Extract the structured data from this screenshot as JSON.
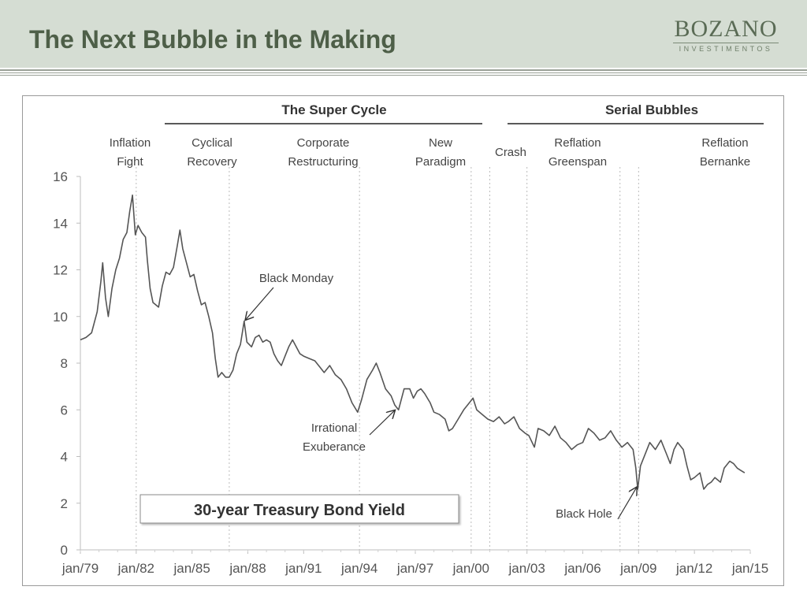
{
  "slide": {
    "title": "The Next Bubble in the Making",
    "logo": {
      "name": "BOZANO",
      "subtitle": "INVESTIMENTOS"
    },
    "colors": {
      "header_bg": "#d5ddd3",
      "title": "#4e5f48",
      "series": "#555555"
    }
  },
  "chart_data": {
    "type": "line",
    "title": "30-year Treasury Bond Yield",
    "xlabel": "",
    "ylabel": "",
    "xlim": [
      1979.0,
      2015.0
    ],
    "ylim": [
      0,
      16
    ],
    "yticks": [
      0,
      2,
      4,
      6,
      8,
      10,
      12,
      14,
      16
    ],
    "xticks": [
      {
        "label": "jan/79",
        "x": 1979.0
      },
      {
        "label": "jan/82",
        "x": 1982.0
      },
      {
        "label": "jan/85",
        "x": 1985.0
      },
      {
        "label": "jan/88",
        "x": 1988.0
      },
      {
        "label": "jan/91",
        "x": 1991.0
      },
      {
        "label": "jan/94",
        "x": 1994.0
      },
      {
        "label": "jan/97",
        "x": 1997.0
      },
      {
        "label": "jan/00",
        "x": 2000.0
      },
      {
        "label": "jan/03",
        "x": 2003.0
      },
      {
        "label": "jan/06",
        "x": 2006.0
      },
      {
        "label": "jan/09",
        "x": 2009.0
      },
      {
        "label": "jan/12",
        "x": 2012.0
      },
      {
        "label": "jan/15",
        "x": 2015.0
      }
    ],
    "grid": false,
    "series": [
      {
        "values": [
          [
            1979.0,
            9.0
          ],
          [
            1979.3,
            9.1
          ],
          [
            1979.6,
            9.3
          ],
          [
            1979.9,
            10.2
          ],
          [
            1980.1,
            11.5
          ],
          [
            1980.2,
            12.3
          ],
          [
            1980.35,
            10.8
          ],
          [
            1980.5,
            10.0
          ],
          [
            1980.7,
            11.2
          ],
          [
            1980.9,
            12.0
          ],
          [
            1981.1,
            12.5
          ],
          [
            1981.3,
            13.3
          ],
          [
            1981.5,
            13.6
          ],
          [
            1981.65,
            14.5
          ],
          [
            1981.8,
            15.2
          ],
          [
            1981.95,
            13.5
          ],
          [
            1982.1,
            13.9
          ],
          [
            1982.3,
            13.6
          ],
          [
            1982.5,
            13.4
          ],
          [
            1982.6,
            12.4
          ],
          [
            1982.75,
            11.2
          ],
          [
            1982.9,
            10.6
          ],
          [
            1983.05,
            10.5
          ],
          [
            1983.2,
            10.4
          ],
          [
            1983.4,
            11.3
          ],
          [
            1983.6,
            11.9
          ],
          [
            1983.8,
            11.8
          ],
          [
            1984.0,
            12.1
          ],
          [
            1984.2,
            13.0
          ],
          [
            1984.35,
            13.7
          ],
          [
            1984.5,
            12.9
          ],
          [
            1984.7,
            12.3
          ],
          [
            1984.9,
            11.7
          ],
          [
            1985.1,
            11.8
          ],
          [
            1985.3,
            11.1
          ],
          [
            1985.5,
            10.5
          ],
          [
            1985.7,
            10.6
          ],
          [
            1985.9,
            10.0
          ],
          [
            1986.1,
            9.3
          ],
          [
            1986.25,
            8.2
          ],
          [
            1986.4,
            7.4
          ],
          [
            1986.6,
            7.6
          ],
          [
            1986.8,
            7.4
          ],
          [
            1987.0,
            7.4
          ],
          [
            1987.2,
            7.7
          ],
          [
            1987.4,
            8.4
          ],
          [
            1987.6,
            8.8
          ],
          [
            1987.8,
            9.8
          ],
          [
            1987.95,
            8.9
          ],
          [
            1988.2,
            8.7
          ],
          [
            1988.4,
            9.1
          ],
          [
            1988.6,
            9.2
          ],
          [
            1988.8,
            8.9
          ],
          [
            1989.0,
            9.0
          ],
          [
            1989.2,
            8.9
          ],
          [
            1989.4,
            8.4
          ],
          [
            1989.6,
            8.1
          ],
          [
            1989.8,
            7.9
          ],
          [
            1990.0,
            8.3
          ],
          [
            1990.2,
            8.7
          ],
          [
            1990.4,
            9.0
          ],
          [
            1990.6,
            8.7
          ],
          [
            1990.8,
            8.4
          ],
          [
            1991.0,
            8.3
          ],
          [
            1991.3,
            8.2
          ],
          [
            1991.6,
            8.1
          ],
          [
            1991.9,
            7.8
          ],
          [
            1992.1,
            7.6
          ],
          [
            1992.4,
            7.9
          ],
          [
            1992.7,
            7.5
          ],
          [
            1993.0,
            7.3
          ],
          [
            1993.3,
            6.9
          ],
          [
            1993.6,
            6.3
          ],
          [
            1993.9,
            5.9
          ],
          [
            1994.1,
            6.4
          ],
          [
            1994.4,
            7.3
          ],
          [
            1994.7,
            7.7
          ],
          [
            1994.9,
            8.0
          ],
          [
            1995.1,
            7.6
          ],
          [
            1995.4,
            6.9
          ],
          [
            1995.7,
            6.6
          ],
          [
            1995.9,
            6.2
          ],
          [
            1996.1,
            6.0
          ],
          [
            1996.4,
            6.9
          ],
          [
            1996.7,
            6.9
          ],
          [
            1996.9,
            6.5
          ],
          [
            1997.1,
            6.8
          ],
          [
            1997.3,
            6.9
          ],
          [
            1997.5,
            6.7
          ],
          [
            1997.8,
            6.3
          ],
          [
            1998.0,
            5.9
          ],
          [
            1998.3,
            5.8
          ],
          [
            1998.6,
            5.6
          ],
          [
            1998.8,
            5.1
          ],
          [
            1999.0,
            5.2
          ],
          [
            1999.3,
            5.6
          ],
          [
            1999.6,
            6.0
          ],
          [
            1999.9,
            6.3
          ],
          [
            2000.1,
            6.5
          ],
          [
            2000.3,
            6.0
          ],
          [
            2000.6,
            5.8
          ],
          [
            2000.9,
            5.6
          ],
          [
            2001.2,
            5.5
          ],
          [
            2001.5,
            5.7
          ],
          [
            2001.8,
            5.4
          ],
          [
            2002.0,
            5.5
          ],
          [
            2002.3,
            5.7
          ],
          [
            2002.6,
            5.2
          ],
          [
            2002.9,
            5.0
          ],
          [
            2003.1,
            4.9
          ],
          [
            2003.4,
            4.4
          ],
          [
            2003.6,
            5.2
          ],
          [
            2003.9,
            5.1
          ],
          [
            2004.2,
            4.9
          ],
          [
            2004.5,
            5.3
          ],
          [
            2004.8,
            4.8
          ],
          [
            2005.1,
            4.6
          ],
          [
            2005.4,
            4.3
          ],
          [
            2005.7,
            4.5
          ],
          [
            2006.0,
            4.6
          ],
          [
            2006.3,
            5.2
          ],
          [
            2006.6,
            5.0
          ],
          [
            2006.9,
            4.7
          ],
          [
            2007.2,
            4.8
          ],
          [
            2007.5,
            5.1
          ],
          [
            2007.8,
            4.7
          ],
          [
            2008.1,
            4.4
          ],
          [
            2008.4,
            4.6
          ],
          [
            2008.7,
            4.3
          ],
          [
            2008.85,
            3.5
          ],
          [
            2008.95,
            2.6
          ],
          [
            2009.1,
            3.6
          ],
          [
            2009.4,
            4.2
          ],
          [
            2009.6,
            4.6
          ],
          [
            2009.9,
            4.3
          ],
          [
            2010.2,
            4.7
          ],
          [
            2010.5,
            4.1
          ],
          [
            2010.7,
            3.7
          ],
          [
            2010.9,
            4.3
          ],
          [
            2011.1,
            4.6
          ],
          [
            2011.4,
            4.3
          ],
          [
            2011.6,
            3.6
          ],
          [
            2011.8,
            3.0
          ],
          [
            2012.0,
            3.1
          ],
          [
            2012.3,
            3.3
          ],
          [
            2012.5,
            2.6
          ],
          [
            2012.7,
            2.8
          ],
          [
            2012.9,
            2.9
          ],
          [
            2013.1,
            3.1
          ],
          [
            2013.4,
            2.9
          ],
          [
            2013.6,
            3.5
          ],
          [
            2013.9,
            3.8
          ],
          [
            2014.1,
            3.7
          ],
          [
            2014.3,
            3.5
          ],
          [
            2014.5,
            3.4
          ],
          [
            2014.7,
            3.3
          ]
        ]
      }
    ],
    "phase_dividers": [
      1982.0,
      1987.0,
      1994.0,
      2000.0,
      2001.0,
      2003.0,
      2008.0,
      2009.0
    ],
    "groups": [
      {
        "label": "The Super Cycle"
      },
      {
        "label": "Serial Bubbles"
      }
    ],
    "phases": [
      {
        "lines": [
          "Inflation",
          "Fight"
        ]
      },
      {
        "lines": [
          "Cyclical",
          "Recovery"
        ]
      },
      {
        "lines": [
          "Corporate",
          "Restructuring"
        ]
      },
      {
        "lines": [
          "New",
          "Paradigm"
        ]
      },
      {
        "lines": [
          "Crash"
        ]
      },
      {
        "lines": [
          "Reflation",
          "Greenspan"
        ]
      },
      {
        "lines": [
          "Reflation",
          "Bernanke"
        ]
      }
    ],
    "annotations": [
      {
        "lines": [
          "Black Monday"
        ],
        "x": 1987.8,
        "y": 9.8
      },
      {
        "lines": [
          "Irrational",
          "Exuberance"
        ],
        "x": 1995.8,
        "y": 5.9
      },
      {
        "lines": [
          "Black Hole"
        ],
        "x": 2008.8,
        "y": 2.6
      }
    ],
    "legend": {
      "label": "30-year Treasury Bond Yield",
      "position": "bottom-left"
    }
  }
}
